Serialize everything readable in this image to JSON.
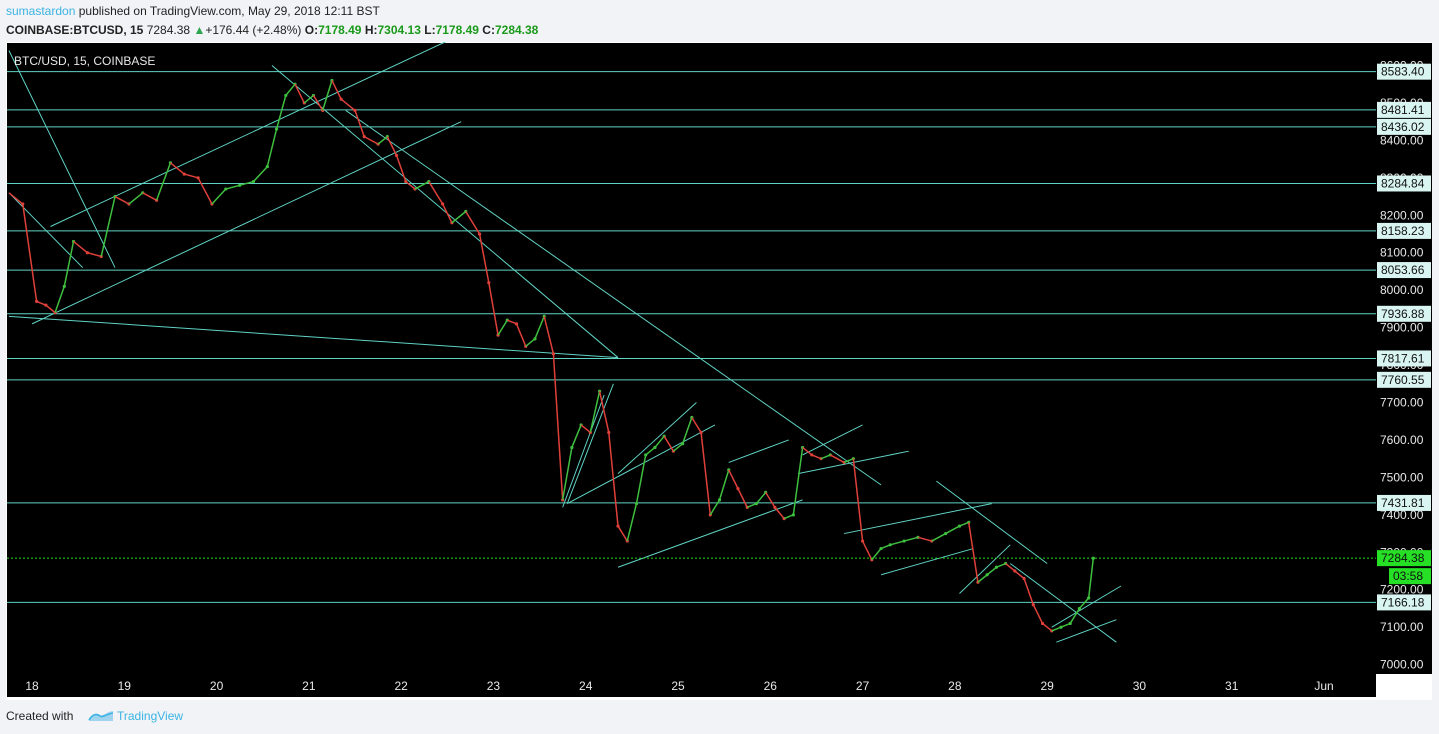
{
  "header": {
    "author": "sumastardon",
    "published": "published on TradingView.com, May 29, 2018 12:11 BST",
    "symbol": "COINBASE:BTCUSD, 15",
    "last": "7284.38",
    "change": "+176.44 (+2.48%)",
    "open_label": "O:",
    "open": "7178.49",
    "high_label": "H:",
    "high": "7304.13",
    "low_label": "L:",
    "low": "7178.49",
    "close_label": "C:",
    "close": "7284.38"
  },
  "footer": {
    "created": "Created with",
    "brand": "TradingView"
  },
  "colors": {
    "background": "#000000",
    "line": "#5fd3c4",
    "up": "#3fbf3f",
    "down": "#e0403a",
    "price_line": "#26d826",
    "tag_bg": "#d9f5f2",
    "price_tag": "#26e026"
  },
  "chart_data": {
    "type": "line",
    "title": "BTC/USD, 15, COINBASE",
    "ylim": [
      6975,
      8660
    ],
    "y_ticks": [
      7000,
      7100,
      7200,
      7300,
      7400,
      7500,
      7600,
      7700,
      7800,
      7900,
      8000,
      8100,
      8200,
      8300,
      8400,
      8500,
      8600
    ],
    "y_tick_labels": [
      "7000.00",
      "7100.00",
      "7200.00",
      "7300.00",
      "7400.00",
      "7500.00",
      "7600.00",
      "7700.00",
      "7800.00",
      "7900.00",
      "8000.00",
      "8100.00",
      "8200.00",
      "8300.00",
      "8400.00",
      "8500.00",
      "8600.00"
    ],
    "x_ticks": [
      18,
      19,
      20,
      21,
      22,
      23,
      24,
      25,
      26,
      27,
      28,
      29,
      30,
      31,
      32
    ],
    "x_tick_labels": [
      "18",
      "19",
      "20",
      "21",
      "22",
      "23",
      "24",
      "25",
      "26",
      "27",
      "28",
      "29",
      "30",
      "31",
      "Jun"
    ],
    "horizontal_levels": [
      8583.4,
      8481.41,
      8436.02,
      8284.84,
      8158.23,
      8053.66,
      7936.88,
      7817.61,
      7760.55,
      7431.81,
      7284.38,
      7166.18
    ],
    "horizontal_level_labels": [
      "8583.40",
      "8481.41",
      "8436.02",
      "8284.84",
      "8158.23",
      "8053.66",
      "7936.88",
      "7817.61",
      "7760.55",
      "7431.81",
      "7284.38",
      "7166.18"
    ],
    "current_price": 7284.38,
    "current_price_label": "7284.38",
    "countdown": "03:58",
    "series": [
      {
        "values": [
          [
            17.75,
            8260
          ],
          [
            17.9,
            8230
          ],
          [
            18.05,
            7970
          ],
          [
            18.15,
            7960
          ],
          [
            18.25,
            7940
          ],
          [
            18.35,
            8010
          ],
          [
            18.45,
            8130
          ],
          [
            18.6,
            8100
          ],
          [
            18.75,
            8090
          ],
          [
            18.9,
            8250
          ],
          [
            19.05,
            8230
          ],
          [
            19.2,
            8260
          ],
          [
            19.35,
            8240
          ],
          [
            19.5,
            8340
          ],
          [
            19.65,
            8310
          ],
          [
            19.8,
            8300
          ],
          [
            19.95,
            8230
          ],
          [
            20.1,
            8270
          ],
          [
            20.25,
            8280
          ],
          [
            20.4,
            8290
          ],
          [
            20.55,
            8330
          ],
          [
            20.65,
            8430
          ],
          [
            20.75,
            8520
          ],
          [
            20.85,
            8550
          ],
          [
            20.95,
            8500
          ],
          [
            21.05,
            8520
          ],
          [
            21.15,
            8480
          ],
          [
            21.25,
            8560
          ],
          [
            21.35,
            8510
          ],
          [
            21.5,
            8480
          ],
          [
            21.6,
            8410
          ],
          [
            21.75,
            8390
          ],
          [
            21.85,
            8410
          ],
          [
            21.95,
            8360
          ],
          [
            22.05,
            8290
          ],
          [
            22.15,
            8270
          ],
          [
            22.3,
            8290
          ],
          [
            22.45,
            8230
          ],
          [
            22.55,
            8180
          ],
          [
            22.7,
            8210
          ],
          [
            22.85,
            8150
          ],
          [
            22.95,
            8020
          ],
          [
            23.05,
            7880
          ],
          [
            23.15,
            7920
          ],
          [
            23.25,
            7910
          ],
          [
            23.35,
            7850
          ],
          [
            23.45,
            7870
          ],
          [
            23.55,
            7930
          ],
          [
            23.65,
            7830
          ],
          [
            23.75,
            7440
          ],
          [
            23.85,
            7580
          ],
          [
            23.95,
            7640
          ],
          [
            24.05,
            7620
          ],
          [
            24.15,
            7730
          ],
          [
            24.25,
            7620
          ],
          [
            24.35,
            7370
          ],
          [
            24.45,
            7330
          ],
          [
            24.55,
            7430
          ],
          [
            24.65,
            7560
          ],
          [
            24.75,
            7580
          ],
          [
            24.85,
            7610
          ],
          [
            24.95,
            7570
          ],
          [
            25.05,
            7590
          ],
          [
            25.15,
            7660
          ],
          [
            25.25,
            7620
          ],
          [
            25.35,
            7400
          ],
          [
            25.45,
            7440
          ],
          [
            25.55,
            7520
          ],
          [
            25.65,
            7470
          ],
          [
            25.75,
            7420
          ],
          [
            25.85,
            7430
          ],
          [
            25.95,
            7460
          ],
          [
            26.05,
            7420
          ],
          [
            26.15,
            7390
          ],
          [
            26.25,
            7400
          ],
          [
            26.35,
            7580
          ],
          [
            26.45,
            7560
          ],
          [
            26.55,
            7550
          ],
          [
            26.65,
            7560
          ],
          [
            26.8,
            7540
          ],
          [
            26.9,
            7550
          ],
          [
            27.0,
            7330
          ],
          [
            27.1,
            7280
          ],
          [
            27.2,
            7310
          ],
          [
            27.3,
            7320
          ],
          [
            27.45,
            7330
          ],
          [
            27.6,
            7340
          ],
          [
            27.75,
            7330
          ],
          [
            27.9,
            7350
          ],
          [
            28.05,
            7370
          ],
          [
            28.15,
            7380
          ],
          [
            28.25,
            7220
          ],
          [
            28.35,
            7240
          ],
          [
            28.45,
            7260
          ],
          [
            28.55,
            7270
          ],
          [
            28.65,
            7250
          ],
          [
            28.75,
            7230
          ],
          [
            28.85,
            7160
          ],
          [
            28.95,
            7110
          ],
          [
            29.05,
            7090
          ],
          [
            29.15,
            7100
          ],
          [
            29.25,
            7110
          ],
          [
            29.35,
            7150
          ],
          [
            29.45,
            7178
          ],
          [
            29.5,
            7284
          ]
        ]
      }
    ],
    "trend_lines": [
      [
        [
          17.75,
          8640
        ],
        [
          18.9,
          8060
        ]
      ],
      [
        [
          17.75,
          8260
        ],
        [
          18.55,
          8060
        ]
      ],
      [
        [
          17.75,
          7930
        ],
        [
          24.35,
          7820
        ]
      ],
      [
        [
          18.0,
          7910
        ],
        [
          22.65,
          8450
        ]
      ],
      [
        [
          18.2,
          8170
        ],
        [
          22.8,
          8700
        ]
      ],
      [
        [
          20.6,
          8600
        ],
        [
          24.35,
          7820
        ]
      ],
      [
        [
          21.4,
          8480
        ],
        [
          27.2,
          7480
        ]
      ],
      [
        [
          23.75,
          7420
        ],
        [
          24.2,
          7720
        ]
      ],
      [
        [
          23.8,
          7430
        ],
        [
          24.3,
          7750
        ]
      ],
      [
        [
          23.8,
          7430
        ],
        [
          25.4,
          7640
        ]
      ],
      [
        [
          24.35,
          7260
        ],
        [
          26.35,
          7440
        ]
      ],
      [
        [
          24.35,
          7510
        ],
        [
          25.2,
          7700
        ]
      ],
      [
        [
          25.55,
          7540
        ],
        [
          26.2,
          7600
        ]
      ],
      [
        [
          26.3,
          7510
        ],
        [
          27.5,
          7570
        ]
      ],
      [
        [
          26.35,
          7560
        ],
        [
          27.0,
          7640
        ]
      ],
      [
        [
          26.8,
          7350
        ],
        [
          28.4,
          7430
        ]
      ],
      [
        [
          27.2,
          7240
        ],
        [
          28.2,
          7310
        ]
      ],
      [
        [
          27.8,
          7490
        ],
        [
          29.0,
          7270
        ]
      ],
      [
        [
          28.05,
          7190
        ],
        [
          28.6,
          7320
        ]
      ],
      [
        [
          28.6,
          7270
        ],
        [
          29.75,
          7060
        ]
      ],
      [
        [
          29.05,
          7100
        ],
        [
          29.8,
          7210
        ]
      ],
      [
        [
          29.1,
          7060
        ],
        [
          29.75,
          7120
        ]
      ]
    ]
  }
}
